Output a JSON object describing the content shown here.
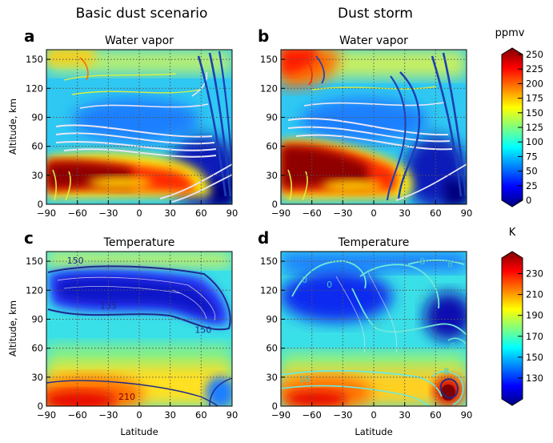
{
  "column_titles": [
    "Basic dust scenario",
    "Dust storm"
  ],
  "chart_data": [
    {
      "type": "heatmap",
      "panel": "a",
      "title": "Water vapor",
      "variable": "water vapor mixing ratio",
      "overlay": "streamlines",
      "xlabel": "",
      "ylabel": "Altitude, km",
      "x_ticks": [
        -90,
        -60,
        -30,
        0,
        30,
        60,
        90
      ],
      "y_ticks": [
        0,
        30,
        60,
        90,
        120,
        150
      ],
      "xlim": [
        -90,
        90
      ],
      "ylim": [
        0,
        160
      ],
      "grid": true,
      "contour_labels": []
    },
    {
      "type": "heatmap",
      "panel": "b",
      "title": "Water vapor",
      "variable": "water vapor mixing ratio",
      "overlay": "streamlines",
      "xlabel": "",
      "ylabel": "",
      "x_ticks": [
        -90,
        -60,
        -30,
        0,
        30,
        60,
        90
      ],
      "y_ticks": [
        0,
        30,
        60,
        90,
        120,
        150
      ],
      "xlim": [
        -90,
        90
      ],
      "ylim": [
        0,
        160
      ],
      "grid": true,
      "contour_labels": []
    },
    {
      "type": "heatmap",
      "panel": "c",
      "title": "Temperature",
      "variable": "temperature",
      "overlay": "isotherms",
      "xlabel": "Latitude",
      "ylabel": "Altitude, km",
      "x_ticks": [
        -90,
        -60,
        -30,
        0,
        30,
        60,
        90
      ],
      "y_ticks": [
        0,
        30,
        60,
        90,
        120,
        150
      ],
      "xlim": [
        -90,
        90
      ],
      "ylim": [
        0,
        160
      ],
      "grid": true,
      "contour_labels": [
        {
          "text": "150",
          "lat": -62,
          "alt": 151
        },
        {
          "text": "135",
          "lat": -30,
          "alt": 104
        },
        {
          "text": "150",
          "lat": 62,
          "alt": 79
        },
        {
          "text": "210",
          "lat": -12,
          "alt": 10
        }
      ]
    },
    {
      "type": "heatmap",
      "panel": "d",
      "title": "Temperature",
      "variable": "temperature difference",
      "overlay": "difference contours",
      "xlabel": "Latitude",
      "ylabel": "",
      "x_ticks": [
        -90,
        -60,
        -30,
        0,
        30,
        60,
        90
      ],
      "y_ticks": [
        0,
        30,
        60,
        90,
        120,
        150
      ],
      "xlim": [
        -90,
        90
      ],
      "ylim": [
        0,
        160
      ],
      "grid": true,
      "contour_labels": [
        {
          "text": "8",
          "lat": 47,
          "alt": 150
        },
        {
          "text": "8",
          "lat": 74,
          "alt": 147
        },
        {
          "text": "0",
          "lat": -67,
          "alt": 131
        },
        {
          "text": "0",
          "lat": -43,
          "alt": 126
        },
        {
          "text": "8",
          "lat": 46,
          "alt": 112
        },
        {
          "text": "0",
          "lat": 5,
          "alt": 84
        },
        {
          "text": "-8",
          "lat": 75,
          "alt": 62
        },
        {
          "text": "16",
          "lat": -67,
          "alt": 28
        },
        {
          "text": "-8",
          "lat": 69,
          "alt": 36
        }
      ]
    }
  ],
  "colorbars": [
    {
      "unit": "ppmv",
      "ticks": [
        0,
        25,
        50,
        75,
        100,
        125,
        150,
        175,
        200,
        225,
        250
      ],
      "range": [
        0,
        250
      ]
    },
    {
      "unit": "K",
      "ticks": [
        130,
        150,
        170,
        190,
        210,
        230
      ],
      "range": [
        110,
        245
      ]
    }
  ],
  "colors": {
    "jet": [
      "#00007f",
      "#0000ff",
      "#007fff",
      "#00ffff",
      "#7fff7f",
      "#ffff00",
      "#ff7f00",
      "#ff0000",
      "#7f0000"
    ],
    "grid": "#555555",
    "stream_light": "#e9e6f5",
    "stream_yellow": "#d8f040",
    "stream_blue": "#1a3fb5",
    "isotherm": "#1e2a8c",
    "diff_contour": "#70e8d8"
  }
}
